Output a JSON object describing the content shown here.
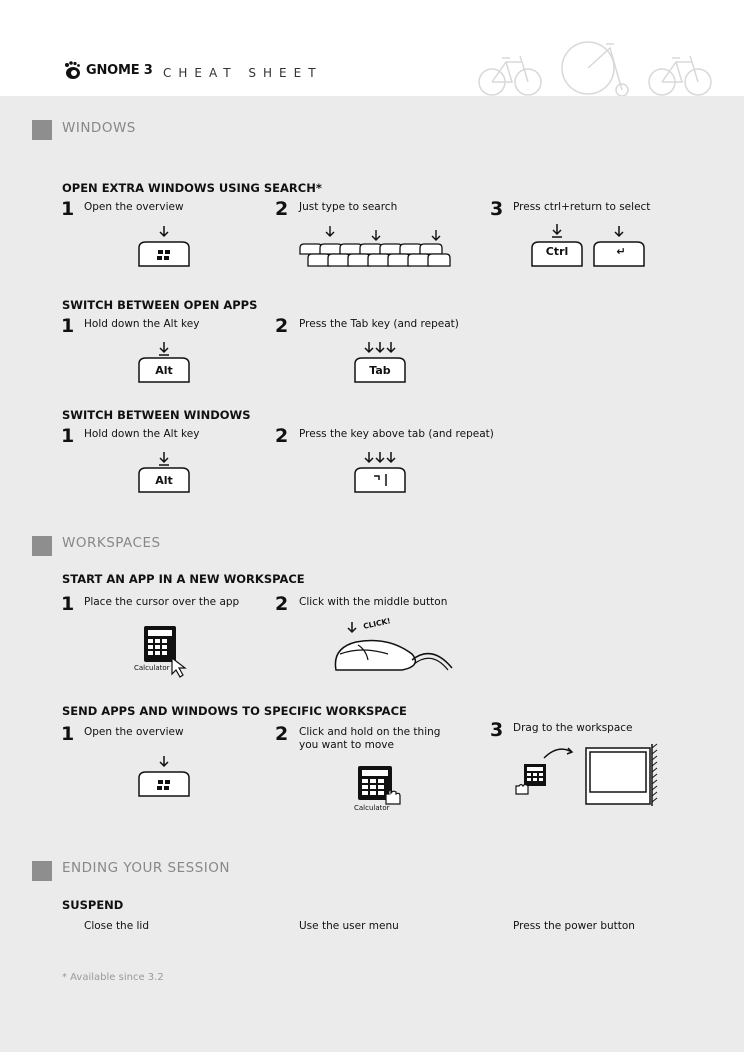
{
  "header": {
    "logo_text": "GNOME 3",
    "subtitle": "CHEAT SHEET"
  },
  "sections": {
    "windows": {
      "title": "WINDOWS"
    },
    "workspaces": {
      "title": "WORKSPACES"
    },
    "ending": {
      "title": "ENDING YOUR SESSION"
    }
  },
  "search": {
    "title": "OPEN EXTRA WINDOWS USING SEARCH*",
    "step1": "Open the overview",
    "step2": "Just type to search",
    "step3": "Press ctrl+return to select",
    "ctrl_key": "Ctrl",
    "return_key": "↵"
  },
  "switch_apps": {
    "title": "SWITCH BETWEEN OPEN APPS",
    "step1": "Hold down the Alt key",
    "step2": "Press the Tab key (and repeat)",
    "alt_key": "Alt",
    "tab_key": "Tab"
  },
  "switch_windows": {
    "title": "SWITCH BETWEEN WINDOWS",
    "step1": "Hold down the Alt key",
    "step2": "Press the key above tab (and repeat)",
    "alt_key": "Alt"
  },
  "new_workspace": {
    "title": "START AN APP IN A NEW  WORKSPACE",
    "step1": "Place the cursor over the app",
    "step2": "Click with the middle button",
    "app_label": "Calculator",
    "click_label": "CLICK!"
  },
  "send_apps": {
    "title": "SEND APPS AND WINDOWS TO SPECIFIC WORKSPACE",
    "step1": "Open the overview",
    "step2_line1": "Click and hold on the thing",
    "step2_line2": "you want to move",
    "step3": "Drag to the workspace",
    "app_label": "Calculator"
  },
  "suspend": {
    "title": "SUSPEND",
    "opt1": "Close the lid",
    "opt2": "Use the user menu",
    "opt3": "Press the power button"
  },
  "footnote": "* Available since 3.2",
  "step_numbers": {
    "one": "1",
    "two": "2",
    "three": "3"
  }
}
